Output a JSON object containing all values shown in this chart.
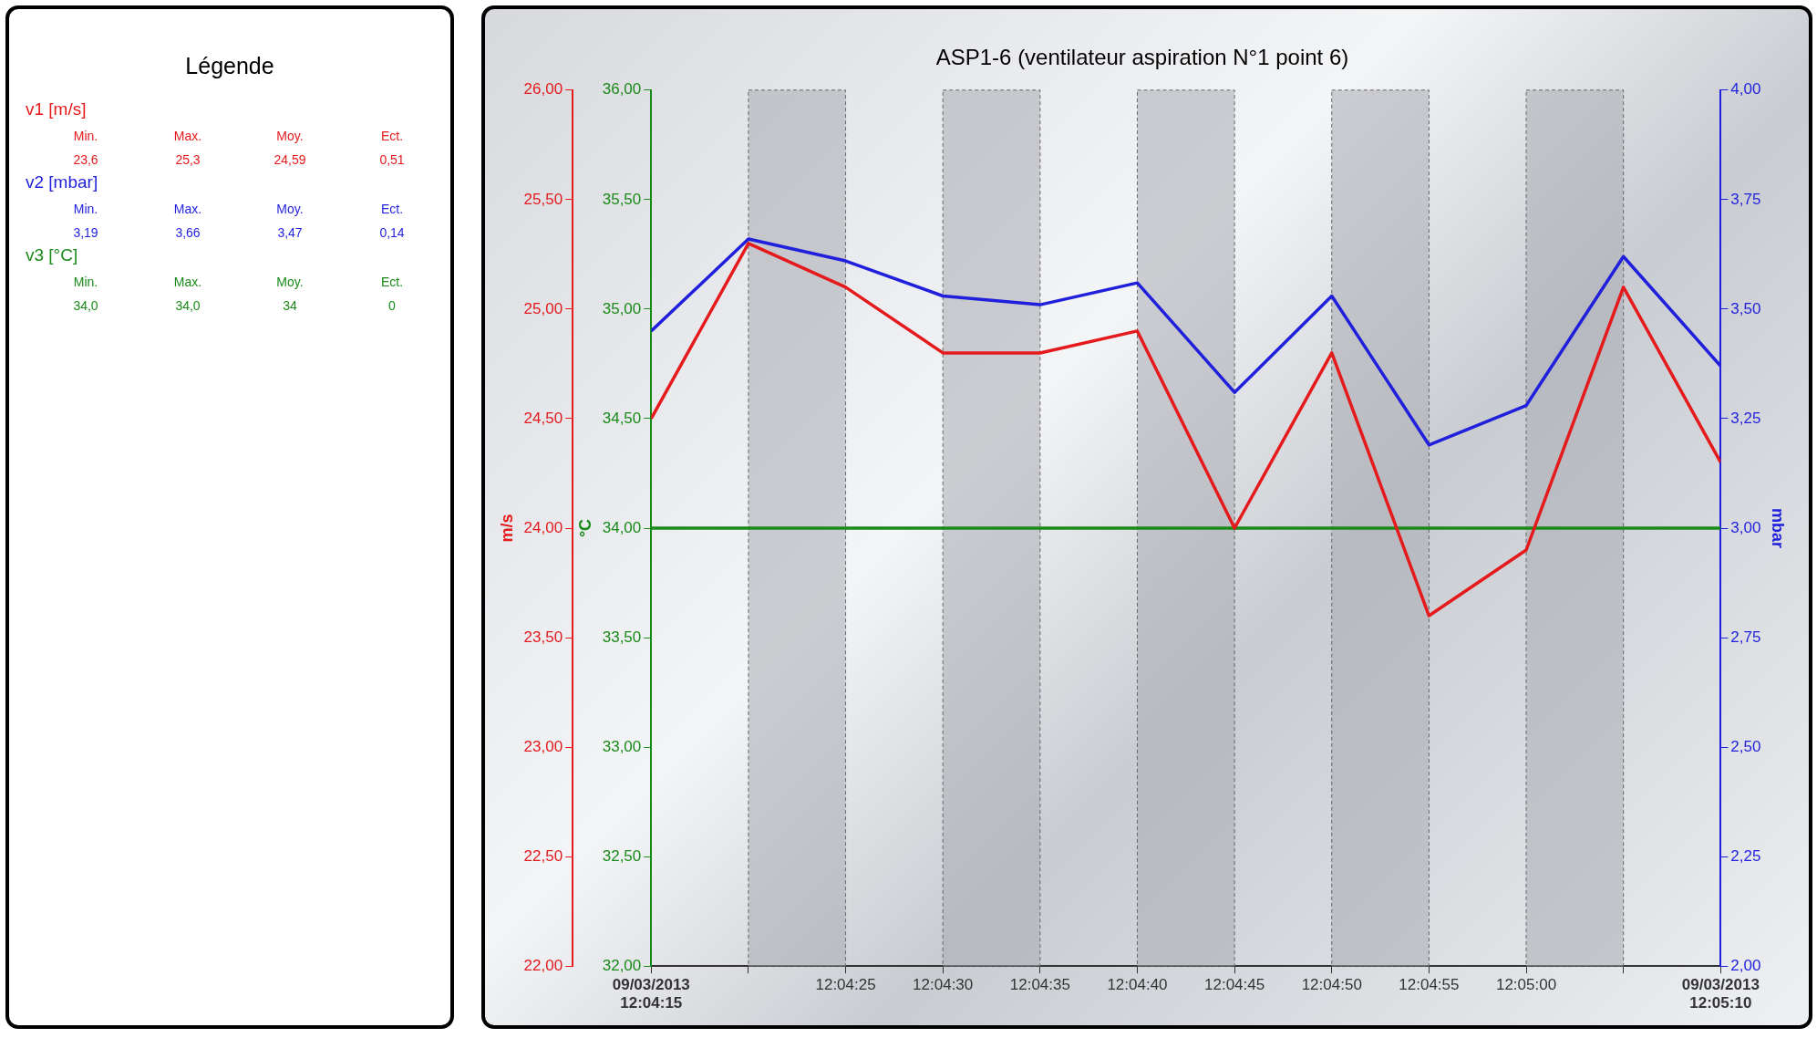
{
  "chart_data": {
    "type": "line",
    "title": "ASP1-6 (ventilateur aspiration N°1 point 6)",
    "legend_title": "Légende",
    "legend": "left",
    "marker": "none",
    "line_style": "solid",
    "grid": false,
    "x": [
      12.0708333,
      12.0722222,
      12.0736111,
      12.075,
      12.0763889,
      12.0777778,
      12.0791667,
      12.0805556,
      12.0819444,
      12.0833333,
      12.0847222,
      12.0861111
    ],
    "xlim": [
      12.0708333,
      12.0861111
    ],
    "xticks": [
      {
        "value": 12.0708333,
        "label": "09/03/2013\n12:04:15"
      },
      {
        "value": 12.0722222,
        "label": null
      },
      {
        "value": 12.0736111,
        "label": "12:04:25"
      },
      {
        "value": 12.075,
        "label": "12:04:30"
      },
      {
        "value": 12.0763889,
        "label": "12:04:35"
      },
      {
        "value": 12.0777778,
        "label": "12:04:40"
      },
      {
        "value": 12.0791667,
        "label": "12:04:45"
      },
      {
        "value": 12.0805556,
        "label": "12:04:50"
      },
      {
        "value": 12.0819444,
        "label": "12:04:55"
      },
      {
        "value": 12.0833333,
        "label": "12:05:00"
      },
      {
        "value": 12.0847222,
        "label": null
      },
      {
        "value": 12.0861111,
        "label": "09/03/2013\n12:05:10"
      }
    ],
    "ylabel": "m/s",
    "ylim": [
      22,
      26
    ],
    "yticks": [
      {
        "value": 22,
        "label": "22,00"
      },
      {
        "value": 22.5,
        "label": "22,50"
      },
      {
        "value": 23,
        "label": "23,00"
      },
      {
        "value": 23.5,
        "label": "23,50"
      },
      {
        "value": 24,
        "label": "24,00"
      },
      {
        "value": 24.5,
        "label": "24,50"
      },
      {
        "value": 25,
        "label": "25,00"
      },
      {
        "value": 25.5,
        "label": "25,50"
      },
      {
        "value": 26,
        "label": "26,00"
      }
    ],
    "y3label": "°C",
    "y3lim": [
      32,
      36
    ],
    "y3ticks": [
      {
        "value": 32,
        "label": "32,00"
      },
      {
        "value": 32.5,
        "label": "32,50"
      },
      {
        "value": 33,
        "label": "33,00"
      },
      {
        "value": 33.5,
        "label": "33,50"
      },
      {
        "value": 34,
        "label": "34,00"
      },
      {
        "value": 34.5,
        "label": "34,50"
      },
      {
        "value": 35,
        "label": "35,00"
      },
      {
        "value": 35.5,
        "label": "35,50"
      },
      {
        "value": 36,
        "label": "36,00"
      }
    ],
    "y2label": "mbar",
    "y2lim": [
      2,
      4
    ],
    "y2ticks": [
      {
        "value": 2,
        "label": "2,00"
      },
      {
        "value": 2.25,
        "label": "2,25"
      },
      {
        "value": 2.5,
        "label": "2,50"
      },
      {
        "value": 2.75,
        "label": "2,75"
      },
      {
        "value": 3,
        "label": "3,00"
      },
      {
        "value": 3.25,
        "label": "3,25"
      },
      {
        "value": 3.5,
        "label": "3,50"
      },
      {
        "value": 3.75,
        "label": "3,75"
      },
      {
        "value": 4,
        "label": "4,00"
      }
    ],
    "series": [
      {
        "name": "v1  [m/s]",
        "color": "#e41a1c",
        "values": [
          24.5,
          25.3,
          25.1,
          24.8,
          24.8,
          24.9,
          24.0,
          24.8,
          23.6,
          23.9,
          25.1,
          24.3
        ]
      },
      {
        "name": "v2  [mbar]",
        "color": "#1f1fdc",
        "axis": "y2",
        "values": [
          3.45,
          3.66,
          3.61,
          3.53,
          3.51,
          3.56,
          3.31,
          3.53,
          3.19,
          3.28,
          3.62,
          3.37
        ]
      },
      {
        "name": "v3  [°C]",
        "color": "#1a8a1a",
        "axis": "y3",
        "values": [
          34,
          34,
          34,
          34,
          34,
          34,
          34,
          34,
          34,
          34,
          34,
          34
        ]
      }
    ],
    "bands": [
      {
        "axis": "x",
        "from": 12.0722222,
        "to": 12.0736111,
        "color": "#a9acb2"
      },
      {
        "axis": "x",
        "from": 12.075,
        "to": 12.0763889,
        "color": "#a9acb2"
      },
      {
        "axis": "x",
        "from": 12.0777778,
        "to": 12.0791667,
        "color": "#a9acb2"
      },
      {
        "axis": "x",
        "from": 12.0805556,
        "to": 12.0819444,
        "color": "#a9acb2"
      },
      {
        "axis": "x",
        "from": 12.0833333,
        "to": 12.0847222,
        "color": "#a9acb2"
      }
    ],
    "annotations": [
      "Min.",
      "Max.",
      "Moy.",
      "Ect.",
      "23,6",
      "25,3",
      "24,59",
      "0,51",
      "Min.",
      "Max.",
      "Moy.",
      "Ect.",
      "3,19",
      "3,66",
      "3,47",
      "0,14",
      "Min.",
      "Max.",
      "Moy.",
      "Ect.",
      "34,0",
      "34,0",
      "34",
      "0"
    ]
  }
}
